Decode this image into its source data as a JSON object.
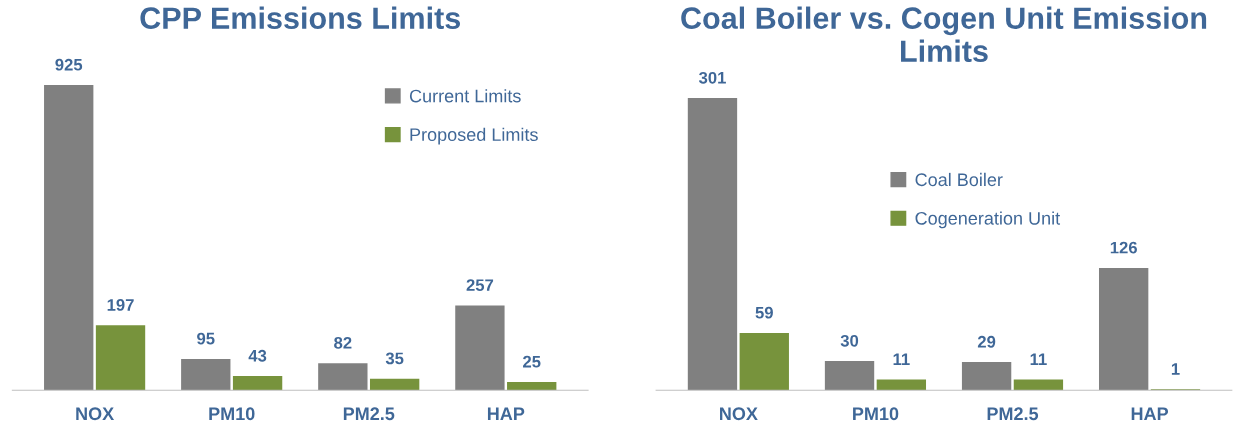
{
  "chart_data": [
    {
      "type": "bar",
      "title": "CPP Emissions Limits",
      "categories": [
        "NOX",
        "PM10",
        "PM2.5",
        "HAP"
      ],
      "series": [
        {
          "name": "Current Limits",
          "color": "#808080",
          "values": [
            925,
            95,
            82,
            257
          ]
        },
        {
          "name": "Proposed Limits",
          "color": "#77933c",
          "values": [
            197,
            43,
            35,
            25
          ]
        }
      ],
      "data_labels": true,
      "legend": "top right",
      "grid": false,
      "tick_labels": "x"
    },
    {
      "type": "bar",
      "title": "Coal Boiler vs. Cogen Unit Emission Limits",
      "categories": [
        "NOX",
        "PM10",
        "PM2.5",
        "HAP"
      ],
      "series": [
        {
          "name": "Coal Boiler",
          "color": "#808080",
          "values": [
            301,
            30,
            29,
            126
          ]
        },
        {
          "name": "Cogeneration Unit",
          "color": "#77933c",
          "values": [
            59,
            11,
            11,
            1
          ]
        }
      ],
      "data_labels": true,
      "legend": "top right",
      "grid": false,
      "tick_labels": "x"
    }
  ]
}
